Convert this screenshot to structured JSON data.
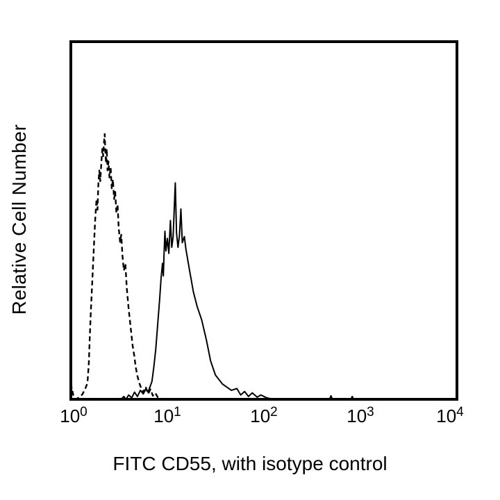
{
  "page": {
    "background": "#ffffff"
  },
  "chart_data": {
    "type": "line",
    "chart_kind": "flow-cytometry-overlay-histogram",
    "title": "",
    "xlabel": "FITC CD55, with isotype control",
    "ylabel": "Relative Cell Number",
    "x_scale": "log10",
    "x_log_range": [
      0,
      4
    ],
    "y_range": [
      0,
      1
    ],
    "grid": false,
    "legend": "none",
    "frame_color": "#000000",
    "background_color": "#ffffff",
    "x_ticks": [
      {
        "mantissa": "10",
        "exponent": "0",
        "log_value": 0
      },
      {
        "mantissa": "10",
        "exponent": "1",
        "log_value": 1
      },
      {
        "mantissa": "10",
        "exponent": "2",
        "log_value": 2
      },
      {
        "mantissa": "10",
        "exponent": "3",
        "log_value": 3
      },
      {
        "mantissa": "10",
        "exponent": "4",
        "log_value": 4
      }
    ],
    "series": [
      {
        "name": "isotype control",
        "line_style": "dashed",
        "color": "#000000",
        "peak": {
          "x_value": 2.2,
          "rel_height": 0.74
        },
        "points": [
          [
            0.0,
            0.0
          ],
          [
            0.008,
            0.034
          ],
          [
            0.025,
            0.012
          ],
          [
            0.05,
            0.0
          ],
          [
            0.09,
            0.006
          ],
          [
            0.12,
            0.014
          ],
          [
            0.15,
            0.03
          ],
          [
            0.172,
            0.045
          ],
          [
            0.186,
            0.1
          ],
          [
            0.196,
            0.17
          ],
          [
            0.208,
            0.25
          ],
          [
            0.222,
            0.33
          ],
          [
            0.236,
            0.41
          ],
          [
            0.252,
            0.5
          ],
          [
            0.266,
            0.56
          ],
          [
            0.276,
            0.53
          ],
          [
            0.285,
            0.6
          ],
          [
            0.295,
            0.64
          ],
          [
            0.305,
            0.61
          ],
          [
            0.316,
            0.66
          ],
          [
            0.326,
            0.7
          ],
          [
            0.336,
            0.68
          ],
          [
            0.344,
            0.72
          ],
          [
            0.351,
            0.742
          ],
          [
            0.358,
            0.69
          ],
          [
            0.365,
            0.66
          ],
          [
            0.372,
            0.7
          ],
          [
            0.38,
            0.64
          ],
          [
            0.39,
            0.665
          ],
          [
            0.4,
            0.62
          ],
          [
            0.412,
            0.65
          ],
          [
            0.424,
            0.59
          ],
          [
            0.436,
            0.615
          ],
          [
            0.448,
            0.56
          ],
          [
            0.46,
            0.58
          ],
          [
            0.472,
            0.52
          ],
          [
            0.484,
            0.545
          ],
          [
            0.496,
            0.48
          ],
          [
            0.51,
            0.44
          ],
          [
            0.522,
            0.46
          ],
          [
            0.535,
            0.4
          ],
          [
            0.55,
            0.36
          ],
          [
            0.565,
            0.38
          ],
          [
            0.58,
            0.31
          ],
          [
            0.6,
            0.25
          ],
          [
            0.62,
            0.2
          ],
          [
            0.64,
            0.15
          ],
          [
            0.658,
            0.12
          ],
          [
            0.672,
            0.09
          ],
          [
            0.69,
            0.065
          ],
          [
            0.71,
            0.045
          ],
          [
            0.73,
            0.03
          ],
          [
            0.752,
            0.02
          ],
          [
            0.775,
            0.035
          ],
          [
            0.8,
            0.015
          ],
          [
            0.825,
            0.028
          ],
          [
            0.85,
            0.01
          ],
          [
            0.875,
            0.018
          ],
          [
            0.9,
            0.006
          ],
          [
            0.94,
            0.0
          ]
        ]
      },
      {
        "name": "FITC CD55",
        "line_style": "solid",
        "color": "#000000",
        "peak": {
          "x_value": 12,
          "rel_height": 0.61
        },
        "points": [
          [
            0.52,
            0.0
          ],
          [
            0.55,
            0.008
          ],
          [
            0.57,
            0.0
          ],
          [
            0.6,
            0.012
          ],
          [
            0.63,
            0.004
          ],
          [
            0.66,
            0.02
          ],
          [
            0.69,
            0.008
          ],
          [
            0.72,
            0.025
          ],
          [
            0.75,
            0.015
          ],
          [
            0.78,
            0.03
          ],
          [
            0.8,
            0.02
          ],
          [
            0.82,
            0.035
          ],
          [
            0.84,
            0.05
          ],
          [
            0.86,
            0.09
          ],
          [
            0.88,
            0.14
          ],
          [
            0.9,
            0.21
          ],
          [
            0.92,
            0.28
          ],
          [
            0.935,
            0.34
          ],
          [
            0.95,
            0.38
          ],
          [
            0.958,
            0.345
          ],
          [
            0.966,
            0.41
          ],
          [
            0.975,
            0.47
          ],
          [
            0.985,
            0.415
          ],
          [
            1.0,
            0.45
          ],
          [
            1.015,
            0.408
          ],
          [
            1.032,
            0.5
          ],
          [
            1.045,
            0.425
          ],
          [
            1.06,
            0.455
          ],
          [
            1.082,
            0.605
          ],
          [
            1.095,
            0.465
          ],
          [
            1.11,
            0.425
          ],
          [
            1.125,
            0.458
          ],
          [
            1.14,
            0.532
          ],
          [
            1.155,
            0.438
          ],
          [
            1.176,
            0.455
          ],
          [
            1.192,
            0.42
          ],
          [
            1.23,
            0.36
          ],
          [
            1.27,
            0.3
          ],
          [
            1.31,
            0.258
          ],
          [
            1.355,
            0.223
          ],
          [
            1.405,
            0.165
          ],
          [
            1.448,
            0.107
          ],
          [
            1.498,
            0.068
          ],
          [
            1.57,
            0.043
          ],
          [
            1.663,
            0.025
          ],
          [
            1.72,
            0.03
          ],
          [
            1.76,
            0.012
          ],
          [
            1.8,
            0.022
          ],
          [
            1.84,
            0.008
          ],
          [
            1.88,
            0.018
          ],
          [
            1.93,
            0.006
          ],
          [
            1.97,
            0.012
          ],
          [
            2.03,
            0.004
          ],
          [
            2.1,
            0.0
          ],
          [
            2.68,
            0.0
          ],
          [
            2.695,
            0.01
          ],
          [
            2.71,
            0.0
          ],
          [
            2.9,
            0.0
          ],
          [
            2.915,
            0.008
          ],
          [
            2.93,
            0.0
          ],
          [
            4.0,
            0.0
          ]
        ]
      }
    ]
  }
}
